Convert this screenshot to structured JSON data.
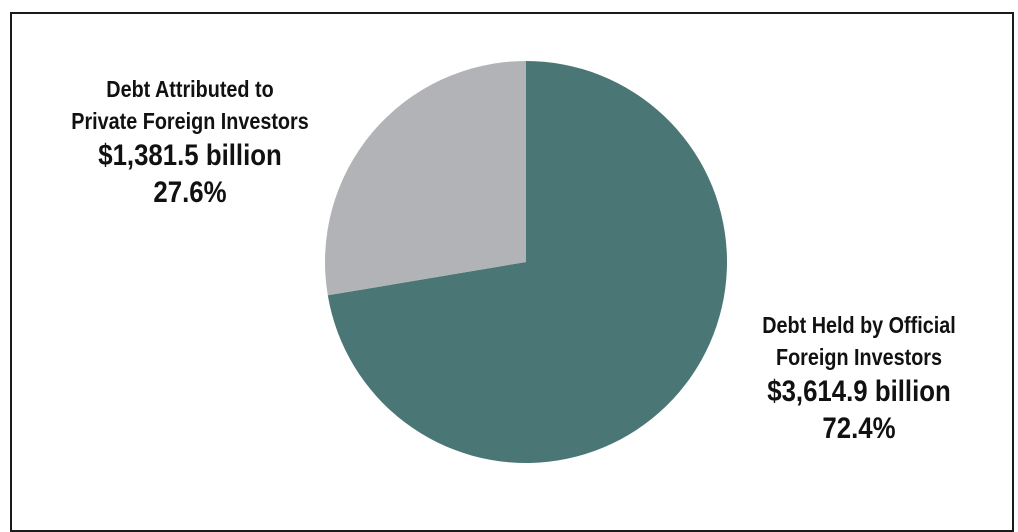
{
  "chart_data": {
    "type": "pie",
    "slices": [
      {
        "label_lines": [
          "Debt Held by Official",
          "Foreign Investors"
        ],
        "value_text": "$3,614.9 billion",
        "percent_text": "72.4%",
        "value": 3614.9,
        "percent": 72.4,
        "color": "#4a7775"
      },
      {
        "label_lines": [
          "Debt Attributed to",
          "Private Foreign Investors"
        ],
        "value_text": "$1,381.5 billion",
        "percent_text": "27.6%",
        "value": 1381.5,
        "percent": 27.6,
        "color": "#b1b3b6"
      }
    ],
    "start_angle": "12 o'clock",
    "direction": "clockwise",
    "legend": "none"
  }
}
